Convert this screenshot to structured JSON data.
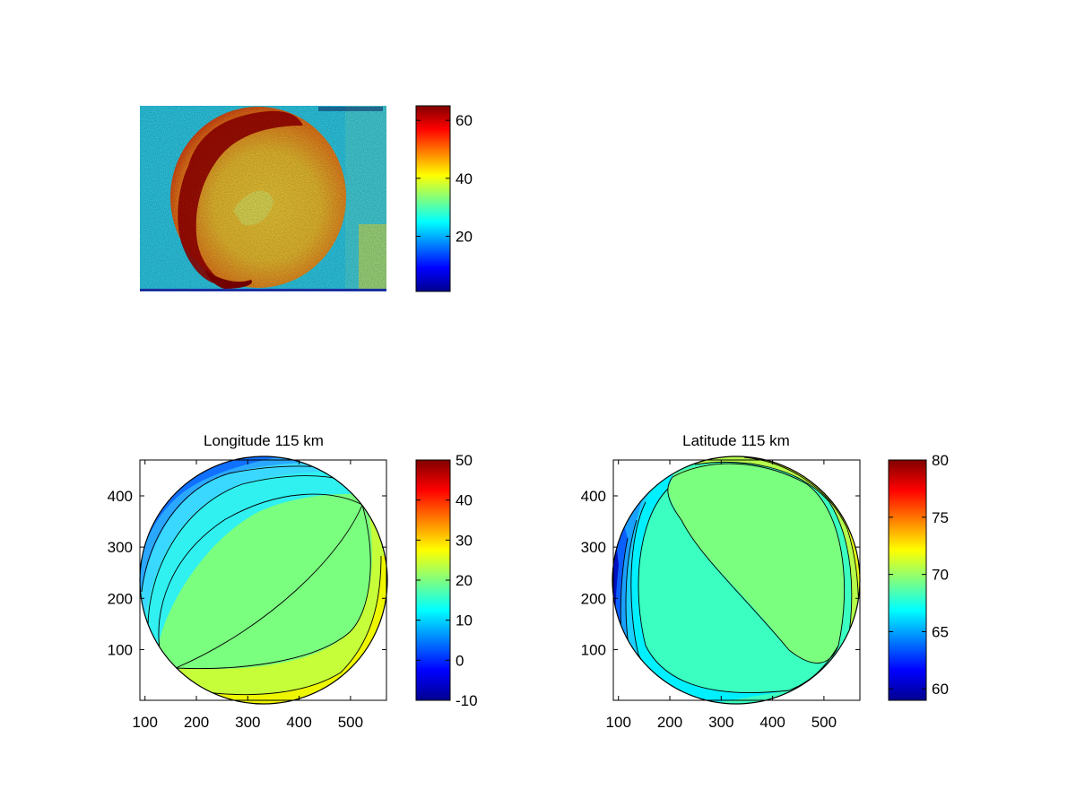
{
  "figure": {
    "background": "#ffffff"
  },
  "chart_data": [
    {
      "id": "image-panel",
      "type": "heatmap",
      "title": "",
      "xlabel": "",
      "ylabel": "",
      "content": "false-colour image of a circular disc, hot rim on left/top-left, warm interior, cool background",
      "colormap": "jet",
      "colorbar": {
        "range": [
          1,
          65
        ],
        "ticks": [
          20,
          40,
          60
        ]
      }
    },
    {
      "id": "longitude-panel",
      "type": "heatmap",
      "title": "Longitude 115 km",
      "xlabel": "",
      "ylabel": "",
      "xlim": [
        90,
        570
      ],
      "ylim": [
        1,
        470
      ],
      "xticks": [
        100,
        200,
        300,
        400,
        500
      ],
      "yticks": [
        100,
        200,
        300,
        400
      ],
      "content": "filled contours of longitude over a disc centred near (330, 235)",
      "contour_levels": [
        5,
        10,
        15,
        20,
        25,
        30,
        35
      ],
      "colormap": "jet",
      "colorbar": {
        "range": [
          -10,
          50
        ],
        "ticks": [
          -10,
          0,
          10,
          20,
          30,
          40,
          50
        ]
      }
    },
    {
      "id": "latitude-panel",
      "type": "heatmap",
      "title": "Latitude 115 km",
      "xlabel": "",
      "ylabel": "",
      "xlim": [
        90,
        570
      ],
      "ylim": [
        1,
        470
      ],
      "xticks": [
        100,
        200,
        300,
        400,
        500
      ],
      "yticks": [
        100,
        200,
        300,
        400
      ],
      "content": "filled contours of latitude over a disc centred near (330, 235)",
      "contour_levels": [
        62,
        64,
        66,
        68,
        70,
        72,
        74
      ],
      "colormap": "jet",
      "colorbar": {
        "range": [
          59,
          80
        ],
        "ticks": [
          60,
          65,
          70,
          75,
          80
        ]
      }
    }
  ]
}
